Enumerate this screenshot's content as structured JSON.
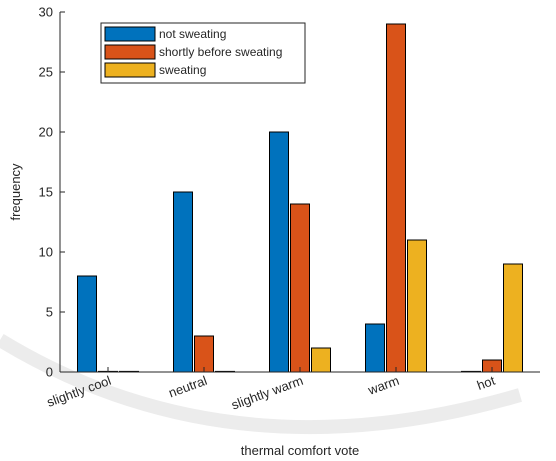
{
  "chart_data": {
    "type": "bar",
    "xlabel": "thermal comfort vote",
    "ylabel": "frequency",
    "categories": [
      "slightly cool",
      "neutral",
      "slightly warm",
      "warm",
      "hot"
    ],
    "ylim": [
      0,
      30
    ],
    "yticks": [
      0,
      5,
      10,
      15,
      20,
      25,
      30
    ],
    "series": [
      {
        "name": "not sweating",
        "color": "#0072bd",
        "values": [
          8,
          15,
          20,
          4,
          0
        ]
      },
      {
        "name": "shortly before sweating",
        "color": "#d95319",
        "values": [
          0,
          3,
          14,
          29,
          1
        ]
      },
      {
        "name": "sweating",
        "color": "#edb120",
        "values": [
          0,
          0,
          2,
          11,
          9
        ]
      }
    ],
    "grid": false,
    "legend_position": "top-left"
  }
}
